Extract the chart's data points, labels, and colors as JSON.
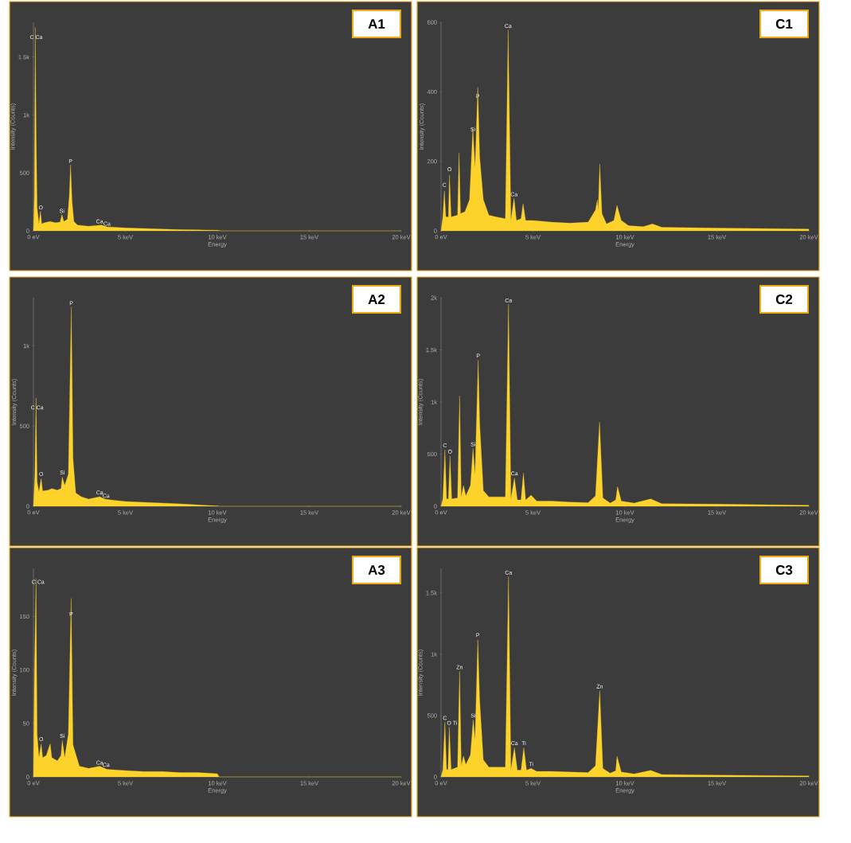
{
  "chart_data": [
    {
      "type": "area",
      "title": "A1",
      "xlabel": "Energy",
      "ylabel": "Intensity (Counts)",
      "color": "#fcd22b",
      "x": [
        0,
        0.05,
        0.1,
        0.15,
        0.2,
        0.3,
        0.38,
        0.45,
        0.6,
        0.9,
        1.2,
        1.45,
        1.55,
        1.65,
        1.85,
        1.95,
        2.02,
        2.1,
        2.2,
        2.4,
        3,
        3.7,
        4,
        5,
        6,
        7,
        8,
        9,
        10,
        10.2,
        20
      ],
      "values": [
        0,
        300,
        1755,
        800,
        200,
        60,
        170,
        60,
        70,
        80,
        70,
        75,
        140,
        80,
        100,
        300,
        570,
        250,
        80,
        50,
        40,
        50,
        35,
        25,
        20,
        15,
        10,
        8,
        5,
        0,
        0
      ],
      "xlim": [
        0,
        20
      ],
      "ylim": [
        0,
        1800
      ],
      "xticks": [
        {
          "value": 0,
          "label": "0 eV"
        },
        {
          "value": 5,
          "label": "5 keV"
        },
        {
          "value": 10,
          "label": "10 keV"
        },
        {
          "value": 15,
          "label": "15 keV"
        },
        {
          "value": 20,
          "label": "20 keV"
        }
      ],
      "yticks": [
        0,
        500,
        {
          "value": 1000,
          "label": "1k"
        },
        {
          "value": 1500,
          "label": "1.5k"
        }
      ],
      "annotations": [
        {
          "text": "C Ca",
          "x": 0.15,
          "y": 1650
        },
        {
          "text": "O",
          "x": 0.4,
          "y": 180
        },
        {
          "text": "Si",
          "x": 1.55,
          "y": 150
        },
        {
          "text": "P",
          "x": 2.02,
          "y": 580
        },
        {
          "text": "Ca",
          "x": 3.6,
          "y": 60
        },
        {
          "text": "Ca",
          "x": 4.0,
          "y": 40
        }
      ]
    },
    {
      "type": "area",
      "title": "C1",
      "xlabel": "Energy",
      "ylabel": "Intensity (Counts)",
      "color": "#fcd22b",
      "x": [
        0,
        0.1,
        0.18,
        0.26,
        0.4,
        0.46,
        0.55,
        0.9,
        0.98,
        1.06,
        1.3,
        1.55,
        1.73,
        1.85,
        2.0,
        2.1,
        2.3,
        2.6,
        3,
        3.5,
        3.65,
        3.8,
        3.97,
        4.1,
        4.35,
        4.46,
        4.6,
        5,
        6,
        7,
        8,
        8.4,
        8.5,
        8.55,
        8.63,
        8.75,
        9,
        9.4,
        9.57,
        9.8,
        10.2,
        11,
        11.5,
        12,
        15,
        20
      ],
      "values": [
        0,
        40,
        115,
        40,
        40,
        161,
        40,
        45,
        224,
        50,
        55,
        90,
        295,
        180,
        413,
        213,
        90,
        45,
        40,
        35,
        578,
        30,
        94,
        30,
        35,
        78,
        30,
        30,
        25,
        22,
        25,
        60,
        89,
        60,
        192,
        50,
        20,
        30,
        73,
        30,
        15,
        12,
        20,
        10,
        8,
        5
      ],
      "xlim": [
        0,
        20
      ],
      "ylim": [
        0,
        600
      ],
      "xticks": [
        {
          "value": 0,
          "label": "0 eV"
        },
        {
          "value": 5,
          "label": "5 keV"
        },
        {
          "value": 10,
          "label": "10 keV"
        },
        {
          "value": 15,
          "label": "15 keV"
        },
        {
          "value": 20,
          "label": "20 keV"
        }
      ],
      "yticks": [
        0,
        200,
        400,
        600
      ],
      "annotations": [
        {
          "text": "C",
          "x": 0.18,
          "y": 125
        },
        {
          "text": "O",
          "x": 0.46,
          "y": 170
        },
        {
          "text": "Si",
          "x": 1.73,
          "y": 285
        },
        {
          "text": "P",
          "x": 2.0,
          "y": 380
        },
        {
          "text": "Ca",
          "x": 3.65,
          "y": 582
        },
        {
          "text": "Ca",
          "x": 3.97,
          "y": 98
        }
      ]
    },
    {
      "type": "area",
      "title": "A2",
      "xlabel": "Energy",
      "ylabel": "Intensity (Counts)",
      "color": "#fcd22b",
      "x": [
        0,
        0.08,
        0.14,
        0.2,
        0.3,
        0.42,
        0.5,
        0.8,
        1.0,
        1.3,
        1.5,
        1.57,
        1.7,
        1.9,
        2.06,
        2.15,
        2.3,
        2.6,
        3,
        3.6,
        3.9,
        4.2,
        5,
        6,
        7,
        8,
        9,
        10,
        10.1,
        20
      ],
      "values": [
        0,
        200,
        676,
        150,
        90,
        173,
        95,
        100,
        110,
        100,
        110,
        181,
        130,
        200,
        1244,
        300,
        83,
        60,
        45,
        60,
        45,
        40,
        30,
        25,
        20,
        15,
        8,
        2,
        0,
        0
      ],
      "xlim": [
        0,
        20
      ],
      "ylim": [
        0,
        1300
      ],
      "xticks": [
        {
          "value": 0,
          "label": "0 eV"
        },
        {
          "value": 5,
          "label": "5 keV"
        },
        {
          "value": 10,
          "label": "10 keV"
        },
        {
          "value": 15,
          "label": "15 keV"
        },
        {
          "value": 20,
          "label": "20 keV"
        }
      ],
      "yticks": [
        0,
        500,
        {
          "value": 1000,
          "label": "1k"
        }
      ],
      "annotations": [
        {
          "text": "C Ca",
          "x": 0.2,
          "y": 600
        },
        {
          "text": "O",
          "x": 0.42,
          "y": 185
        },
        {
          "text": "Si",
          "x": 1.57,
          "y": 195
        },
        {
          "text": "P",
          "x": 2.06,
          "y": 1250
        },
        {
          "text": "Ca",
          "x": 3.6,
          "y": 70
        },
        {
          "text": "Ca",
          "x": 3.95,
          "y": 50
        }
      ]
    },
    {
      "type": "area",
      "title": "C2",
      "xlabel": "Energy",
      "ylabel": "Intensity (Counts)",
      "color": "#fcd22b",
      "x": [
        0,
        0.1,
        0.21,
        0.3,
        0.4,
        0.49,
        0.58,
        0.9,
        1.01,
        1.1,
        1.22,
        1.35,
        1.6,
        1.74,
        1.85,
        2.02,
        2.1,
        2.3,
        2.6,
        3,
        3.5,
        3.67,
        3.8,
        3.99,
        4.15,
        4.35,
        4.48,
        4.6,
        4.9,
        5.2,
        6,
        7,
        8,
        8.4,
        8.62,
        8.8,
        9.2,
        9.5,
        9.6,
        9.8,
        10.5,
        11.4,
        12,
        15,
        20
      ],
      "values": [
        0,
        70,
        541,
        70,
        70,
        482,
        70,
        80,
        1059,
        90,
        200,
        100,
        200,
        553,
        300,
        1400,
        800,
        150,
        90,
        90,
        90,
        1941,
        70,
        270,
        60,
        60,
        318,
        60,
        106,
        50,
        50,
        40,
        35,
        100,
        807,
        80,
        30,
        60,
        188,
        50,
        30,
        70,
        25,
        20,
        10
      ],
      "xlim": [
        0,
        20
      ],
      "ylim": [
        0,
        2000
      ],
      "xticks": [
        {
          "value": 0,
          "label": "0 eV"
        },
        {
          "value": 5,
          "label": "5 keV"
        },
        {
          "value": 10,
          "label": "10 keV"
        },
        {
          "value": 15,
          "label": "15 keV"
        },
        {
          "value": 20,
          "label": "20 keV"
        }
      ],
      "yticks": [
        0,
        500,
        {
          "value": 1000,
          "label": "1k"
        },
        {
          "value": 1500,
          "label": "1.5k"
        },
        {
          "value": 2000,
          "label": "2k"
        }
      ],
      "annotations": [
        {
          "text": "C",
          "x": 0.21,
          "y": 560
        },
        {
          "text": "O",
          "x": 0.49,
          "y": 500
        },
        {
          "text": "Si",
          "x": 1.74,
          "y": 570
        },
        {
          "text": "P",
          "x": 2.02,
          "y": 1420
        },
        {
          "text": "Ca",
          "x": 3.67,
          "y": 1950
        },
        {
          "text": "Ca",
          "x": 3.99,
          "y": 290
        }
      ]
    },
    {
      "type": "area",
      "title": "A3",
      "xlabel": "Energy",
      "ylabel": "Intensity (Counts)",
      "color": "#fcd22b",
      "x": [
        0,
        0.05,
        0.14,
        0.2,
        0.3,
        0.42,
        0.5,
        0.7,
        0.91,
        1.0,
        1.3,
        1.5,
        1.57,
        1.7,
        1.9,
        2.05,
        2.15,
        2.5,
        3,
        3.6,
        4,
        5,
        6,
        7,
        8,
        9,
        10,
        10.1,
        20
      ],
      "values": [
        0,
        93,
        185,
        40,
        18,
        31,
        18,
        20,
        31,
        18,
        15,
        20,
        34,
        18,
        40,
        167,
        30,
        10,
        8,
        10,
        7,
        6,
        5,
        5,
        4,
        4,
        3,
        0,
        0
      ],
      "xlim": [
        0,
        20
      ],
      "ylim": [
        0,
        195
      ],
      "xticks": [
        {
          "value": 0,
          "label": "0 eV"
        },
        {
          "value": 5,
          "label": "5 keV"
        },
        {
          "value": 10,
          "label": "10 keV"
        },
        {
          "value": 15,
          "label": "15 keV"
        },
        {
          "value": 20,
          "label": "20 keV"
        }
      ],
      "yticks": [
        0,
        50,
        100,
        150
      ],
      "annotations": [
        {
          "text": "C Ca",
          "x": 0.25,
          "y": 180
        },
        {
          "text": "O",
          "x": 0.42,
          "y": 33
        },
        {
          "text": "Si",
          "x": 1.57,
          "y": 36
        },
        {
          "text": "P",
          "x": 2.05,
          "y": 150
        },
        {
          "text": "Ca",
          "x": 3.6,
          "y": 11
        },
        {
          "text": "Ca",
          "x": 3.95,
          "y": 9
        }
      ]
    },
    {
      "type": "area",
      "title": "C3",
      "xlabel": "Energy",
      "ylabel": "Intensity (Counts)",
      "color": "#fcd22b",
      "x": [
        0,
        0.1,
        0.21,
        0.3,
        0.38,
        0.45,
        0.55,
        0.9,
        1.01,
        1.1,
        1.22,
        1.35,
        1.6,
        1.75,
        1.85,
        2.0,
        2.1,
        2.3,
        2.6,
        3,
        3.5,
        3.67,
        3.8,
        3.99,
        4.15,
        4.35,
        4.5,
        4.65,
        4.9,
        5.2,
        6,
        7,
        8,
        8.4,
        8.63,
        8.8,
        9.2,
        9.5,
        9.57,
        9.8,
        10.5,
        11.4,
        12,
        15,
        20
      ],
      "values": [
        0,
        60,
        446,
        60,
        60,
        406,
        60,
        80,
        861,
        90,
        170,
        100,
        180,
        465,
        300,
        1119,
        624,
        140,
        80,
        80,
        80,
        1634,
        60,
        238,
        55,
        55,
        238,
        55,
        69,
        45,
        45,
        40,
        35,
        90,
        703,
        70,
        30,
        50,
        168,
        40,
        25,
        53,
        20,
        15,
        8
      ],
      "xlim": [
        0,
        20
      ],
      "ylim": [
        0,
        1700
      ],
      "xticks": [
        {
          "value": 0,
          "label": "0 eV"
        },
        {
          "value": 5,
          "label": "5 keV"
        },
        {
          "value": 10,
          "label": "10 keV"
        },
        {
          "value": 15,
          "label": "15 keV"
        },
        {
          "value": 20,
          "label": "20 keV"
        }
      ],
      "yticks": [
        0,
        500,
        {
          "value": 1000,
          "label": "1k"
        },
        {
          "value": 1500,
          "label": "1.5k"
        }
      ],
      "annotations": [
        {
          "text": "C",
          "x": 0.21,
          "y": 460
        },
        {
          "text": "O Ti",
          "x": 0.6,
          "y": 420
        },
        {
          "text": "Zn",
          "x": 1.01,
          "y": 875
        },
        {
          "text": "Si",
          "x": 1.75,
          "y": 480
        },
        {
          "text": "P",
          "x": 2.0,
          "y": 1135
        },
        {
          "text": "Ca",
          "x": 3.67,
          "y": 1645
        },
        {
          "text": "Ca",
          "x": 3.99,
          "y": 255
        },
        {
          "text": "Ti",
          "x": 4.5,
          "y": 255
        },
        {
          "text": "Ti",
          "x": 4.9,
          "y": 85
        },
        {
          "text": "Zn",
          "x": 8.63,
          "y": 718
        }
      ]
    }
  ]
}
